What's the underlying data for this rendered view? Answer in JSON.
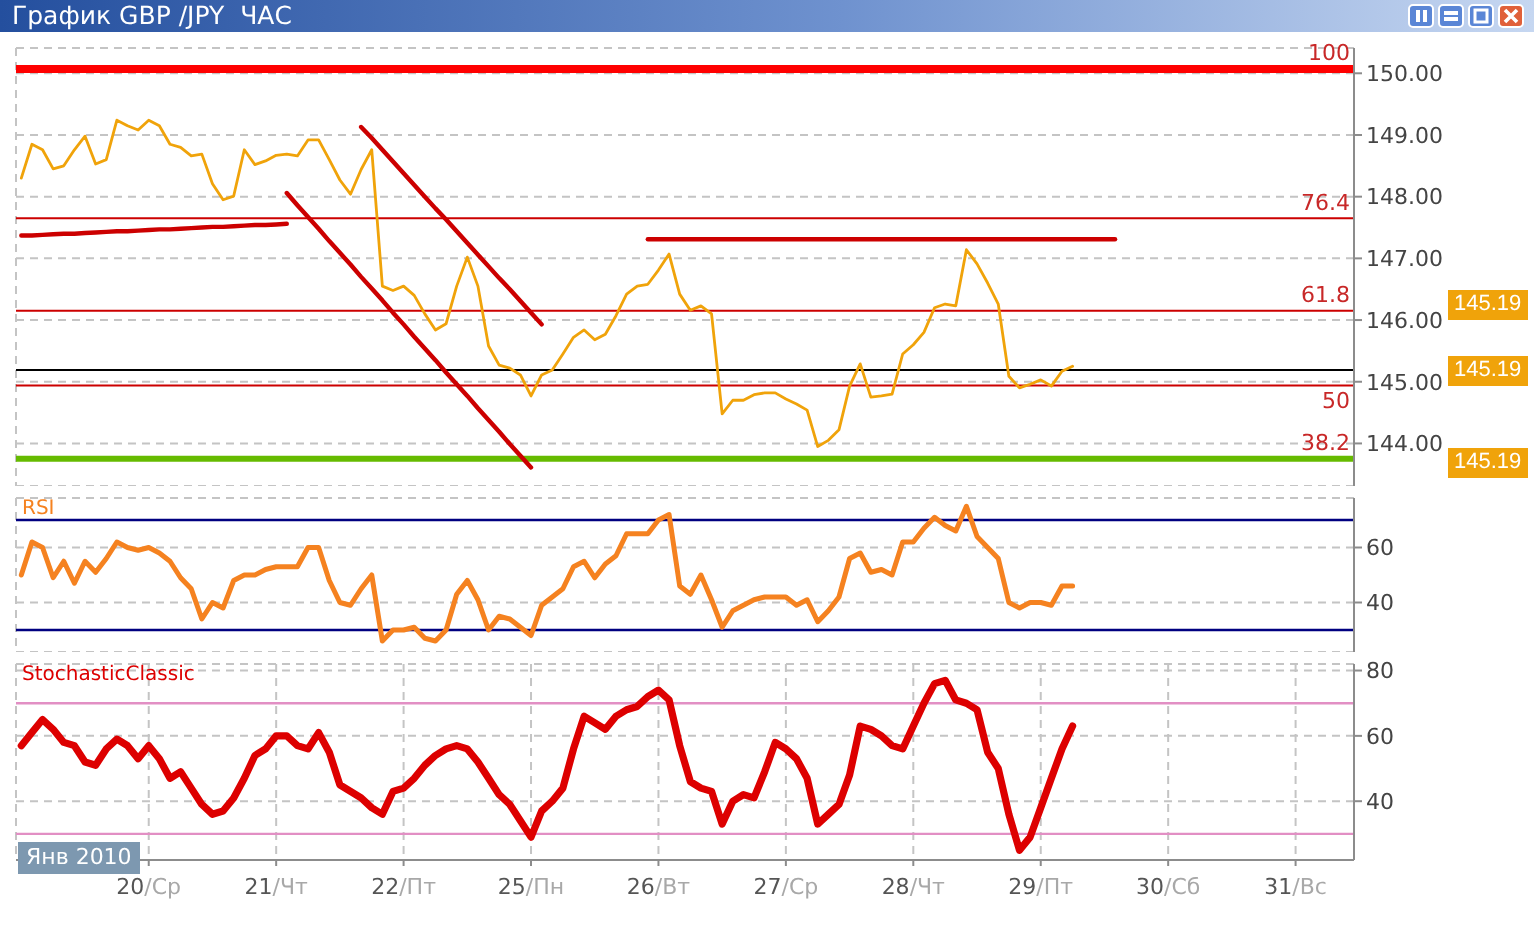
{
  "chart_data": [
    {
      "type": "line",
      "title": "График GBP /JPY  ЧАС",
      "categories": [
        null,
        null,
        null,
        null,
        null,
        null,
        null,
        null,
        null,
        null,
        null,
        null,
        null,
        null,
        null,
        null,
        null,
        null,
        null,
        null,
        null,
        null,
        null,
        null,
        null,
        null,
        null,
        null,
        null,
        null,
        null,
        null,
        null,
        null,
        null,
        null,
        null,
        null,
        null,
        null,
        null,
        null,
        null,
        null,
        null,
        null,
        null,
        null,
        null,
        null,
        null,
        null,
        null,
        null,
        null,
        null,
        null,
        null,
        null,
        null,
        null,
        null,
        null,
        null,
        null,
        null,
        null,
        null,
        null,
        null,
        null,
        null,
        null,
        null,
        null,
        null,
        null,
        null,
        null,
        null,
        null,
        null,
        null,
        null,
        null,
        null,
        null,
        null,
        null,
        null,
        null,
        null,
        null,
        null,
        null,
        null,
        null,
        null,
        null,
        null,
        null,
        null,
        null,
        null,
        null,
        null,
        null,
        null,
        null,
        null,
        null,
        null,
        null,
        null,
        null,
        null,
        null,
        null,
        null,
        null,
        null,
        null,
        null,
        null,
        null,
        null
      ],
      "ylim": [
        143.31,
        150.41
      ],
      "yticks": [
        {
          "value": 144,
          "label": "144.00"
        },
        {
          "value": 145,
          "label": "145.00"
        },
        {
          "value": 146,
          "label": "146.00"
        },
        {
          "value": 147,
          "label": "147.00"
        },
        {
          "value": 148,
          "label": "148.00"
        },
        {
          "value": 149,
          "label": "149.00"
        },
        {
          "value": 150,
          "label": "150.00"
        }
      ],
      "tick_labels": "y",
      "grid": true,
      "series": [
        {
          "color": "#f0a30a",
          "values": [
            148.3,
            148.85,
            148.76,
            148.45,
            148.5,
            148.76,
            148.98,
            148.53,
            148.6,
            149.24,
            149.15,
            149.08,
            149.24,
            149.15,
            148.85,
            148.8,
            148.66,
            148.69,
            148.21,
            147.95,
            148.01,
            148.76,
            148.52,
            148.58,
            148.67,
            148.69,
            148.66,
            148.92,
            148.92,
            148.6,
            148.27,
            148.04,
            148.44,
            148.76,
            146.55,
            146.48,
            146.55,
            146.4,
            146.1,
            145.84,
            145.94,
            146.55,
            147.02,
            146.55,
            145.58,
            145.27,
            145.22,
            145.11,
            144.77,
            145.11,
            145.19,
            145.45,
            145.72,
            145.84,
            145.68,
            145.77,
            146.07,
            146.42,
            146.55,
            146.58,
            146.81,
            147.07,
            146.42,
            146.16,
            146.23,
            146.1,
            144.48,
            144.7,
            144.7,
            144.79,
            144.82,
            144.82,
            144.72,
            144.64,
            144.54,
            143.95,
            144.05,
            144.22,
            144.93,
            145.29,
            144.75,
            144.77,
            144.8,
            145.45,
            145.6,
            145.8,
            146.2,
            146.26,
            146.23,
            147.14,
            146.91,
            146.6,
            146.26,
            145.09,
            144.9,
            144.96,
            145.03,
            144.93,
            145.17,
            145.25,
            null,
            null,
            null,
            null,
            null,
            null,
            null,
            null,
            null,
            null,
            null,
            null,
            null,
            null,
            null,
            null,
            null,
            null,
            null,
            null,
            null,
            null,
            null,
            null,
            null,
            null
          ]
        },
        {
          "color": "#cc0000",
          "values": [
            147.37,
            147.37,
            147.38,
            147.39,
            147.4,
            147.4,
            147.41,
            147.42,
            147.43,
            147.44,
            147.44,
            147.45,
            147.46,
            147.47,
            147.47,
            147.48,
            147.49,
            147.5,
            147.51,
            147.51,
            147.52,
            147.53,
            147.54,
            147.54,
            147.55,
            147.56,
            null,
            null,
            null,
            null,
            null,
            null,
            null,
            null,
            null,
            null,
            null,
            null,
            null,
            null,
            null,
            null,
            null,
            null,
            null,
            null,
            null,
            null,
            null,
            null,
            null,
            null,
            null,
            null,
            null,
            null,
            null,
            null,
            null,
            null,
            null,
            null,
            null,
            null,
            null,
            null,
            null,
            null,
            null,
            null,
            null,
            null,
            null,
            null,
            null,
            null,
            null,
            null,
            null,
            null,
            null,
            null,
            null,
            null,
            null,
            null,
            null,
            null,
            null,
            null,
            null,
            null,
            null,
            null,
            null,
            null,
            null,
            null,
            null,
            null,
            null,
            null,
            null,
            null,
            null,
            null,
            null,
            null,
            null,
            null,
            null,
            null,
            null,
            null,
            null,
            null,
            null,
            null,
            null,
            null,
            null,
            null,
            null,
            null,
            null,
            null
          ]
        },
        {
          "color": "#cc0000",
          "values": [
            null,
            null,
            null,
            null,
            null,
            null,
            null,
            null,
            null,
            null,
            null,
            null,
            null,
            null,
            null,
            null,
            null,
            null,
            null,
            null,
            null,
            null,
            null,
            null,
            null,
            null,
            null,
            null,
            null,
            null,
            null,
            null,
            149.13,
            148.95,
            148.76,
            148.57,
            148.38,
            148.19,
            148.0,
            147.81,
            147.63,
            147.44,
            147.25,
            147.06,
            146.87,
            146.68,
            146.5,
            146.31,
            146.12,
            145.93,
            null,
            null,
            null,
            null,
            null,
            null,
            null,
            null,
            null,
            null,
            null,
            null,
            null,
            null,
            null,
            null,
            null,
            null,
            null,
            null,
            null,
            null,
            null,
            null,
            null,
            null,
            null,
            null,
            null,
            null,
            null,
            null,
            null,
            null,
            null,
            null,
            null,
            null,
            null,
            null,
            null,
            null,
            null,
            null,
            null,
            null,
            null,
            null,
            null,
            null,
            null,
            null,
            null,
            null,
            null,
            null,
            null,
            null,
            null,
            null,
            null,
            null,
            null,
            null,
            null,
            null,
            null,
            null,
            null,
            null,
            null,
            null,
            null,
            null,
            null,
            null
          ]
        },
        {
          "color": "#cc0000",
          "values": [
            null,
            null,
            null,
            null,
            null,
            null,
            null,
            null,
            null,
            null,
            null,
            null,
            null,
            null,
            null,
            null,
            null,
            null,
            null,
            null,
            null,
            null,
            null,
            null,
            null,
            148.06,
            147.86,
            147.67,
            147.48,
            147.28,
            147.09,
            146.9,
            146.7,
            146.51,
            146.32,
            146.12,
            145.93,
            145.73,
            145.54,
            145.35,
            145.15,
            144.96,
            144.77,
            144.57,
            144.38,
            144.19,
            143.99,
            143.8,
            143.61,
            null,
            null,
            null,
            null,
            null,
            null,
            null,
            null,
            null,
            null,
            null,
            null,
            null,
            null,
            null,
            null,
            null,
            null,
            null,
            null,
            null,
            null,
            null,
            null,
            null,
            null,
            null,
            null,
            null,
            null,
            null,
            null,
            null,
            null,
            null,
            null,
            null,
            null,
            null,
            null,
            null,
            null,
            null,
            null,
            null,
            null,
            null,
            null,
            null,
            null,
            null,
            null,
            null,
            null,
            null,
            null,
            null,
            null,
            null,
            null,
            null,
            null,
            null,
            null,
            null,
            null,
            null,
            null,
            null,
            null,
            null,
            null,
            null,
            null,
            null,
            null,
            null
          ]
        },
        {
          "color": "#cc0000",
          "values": [
            null,
            null,
            null,
            null,
            null,
            null,
            null,
            null,
            null,
            null,
            null,
            null,
            null,
            null,
            null,
            null,
            null,
            null,
            null,
            null,
            null,
            null,
            null,
            null,
            null,
            null,
            null,
            null,
            null,
            null,
            null,
            null,
            null,
            null,
            null,
            null,
            null,
            null,
            null,
            null,
            null,
            null,
            null,
            null,
            null,
            null,
            null,
            null,
            null,
            null,
            null,
            null,
            null,
            null,
            null,
            null,
            null,
            null,
            null,
            147.31,
            147.31,
            147.31,
            147.31,
            147.31,
            147.31,
            147.31,
            147.31,
            147.31,
            147.31,
            147.31,
            147.31,
            147.31,
            147.31,
            147.31,
            147.31,
            147.31,
            147.31,
            147.31,
            147.31,
            147.31,
            147.31,
            147.31,
            147.31,
            147.31,
            147.31,
            147.31,
            147.31,
            147.31,
            147.31,
            147.31,
            147.31,
            147.31,
            147.31,
            147.31,
            147.31,
            147.31,
            147.31,
            147.31,
            147.31,
            147.31,
            147.31,
            147.31,
            147.31,
            147.31,
            null,
            null,
            null,
            null,
            null,
            null,
            null,
            null,
            null,
            null,
            null,
            null,
            null,
            null,
            null,
            null,
            null,
            null,
            null,
            null,
            null,
            null
          ]
        }
      ],
      "ref_lines": [
        {
          "axis": "y",
          "value": 150.07,
          "color": "#ff0000"
        },
        {
          "axis": "y",
          "value": 147.65,
          "color": "#cc0000"
        },
        {
          "axis": "y",
          "value": 146.15,
          "color": "#cc0000"
        },
        {
          "axis": "y",
          "value": 145.19,
          "color": "#000000"
        },
        {
          "axis": "y",
          "value": 144.94,
          "color": "#cc0000"
        },
        {
          "axis": "y",
          "value": 143.75,
          "color": "#66bb00"
        }
      ],
      "annotations": [
        {
          "text": "100",
          "y": 150.07
        },
        {
          "text": "76.4",
          "y": 147.65
        },
        {
          "text": "61.8",
          "y": 146.15
        },
        {
          "text": "50",
          "y": 144.94
        },
        {
          "text": "38.2",
          "y": 143.75
        },
        "145.19",
        "145.19",
        "145.19"
      ]
    },
    {
      "type": "line",
      "title": "RSI",
      "categories": [
        null,
        null,
        null,
        null,
        null,
        null,
        null,
        null,
        null,
        null,
        null,
        null,
        null,
        null,
        null,
        null,
        null,
        null,
        null,
        null,
        null,
        null,
        null,
        null,
        null,
        null,
        null,
        null,
        null,
        null,
        null,
        null,
        null,
        null,
        null,
        null,
        null,
        null,
        null,
        null,
        null,
        null,
        null,
        null,
        null,
        null,
        null,
        null,
        null,
        null,
        null,
        null,
        null,
        null,
        null,
        null,
        null,
        null,
        null,
        null,
        null,
        null,
        null,
        null,
        null,
        null,
        null,
        null,
        null,
        null,
        null,
        null,
        null,
        null,
        null,
        null,
        null,
        null,
        null,
        null,
        null,
        null,
        null,
        null,
        null,
        null,
        null,
        null,
        null,
        null,
        null,
        null,
        null,
        null,
        null,
        null,
        null,
        null,
        null,
        null,
        null,
        null,
        null,
        null,
        null,
        null,
        null,
        null,
        null,
        null,
        null,
        null,
        null,
        null,
        null,
        null,
        null,
        null,
        null,
        null,
        null,
        null,
        null,
        null,
        null,
        null
      ],
      "ylim": [
        22,
        78
      ],
      "yticks": [
        40,
        60
      ],
      "tick_labels": "y",
      "grid": true,
      "series": [
        {
          "color": "#f58220",
          "values": [
            50,
            62,
            60,
            49,
            55,
            47,
            55,
            51,
            56,
            62,
            60,
            59,
            60,
            58,
            55,
            49,
            45,
            34,
            40,
            38,
            48,
            50,
            50,
            52,
            53,
            53,
            53,
            60,
            60,
            48,
            40,
            39,
            45,
            50,
            26,
            30,
            30,
            31,
            27,
            26,
            30,
            43,
            48,
            41,
            30,
            35,
            34,
            31,
            28,
            39,
            42,
            45,
            53,
            55,
            49,
            54,
            57,
            65,
            65,
            65,
            70,
            72,
            46,
            43,
            50,
            41,
            31,
            37,
            39,
            41,
            42,
            42,
            42,
            39,
            41,
            33,
            37,
            42,
            56,
            58,
            51,
            52,
            50,
            62,
            62,
            67,
            71,
            68,
            66,
            75,
            64,
            60,
            56,
            40,
            38,
            40,
            40,
            39,
            46,
            46,
            null,
            null,
            null,
            null,
            null,
            null,
            null,
            null,
            null,
            null,
            null,
            null,
            null,
            null,
            null,
            null,
            null,
            null,
            null,
            null,
            null,
            null,
            null,
            null,
            null,
            null
          ]
        }
      ],
      "ref_lines": [
        {
          "axis": "y",
          "value": 70,
          "color": "#000080"
        },
        {
          "axis": "y",
          "value": 30,
          "color": "#000080"
        }
      ]
    },
    {
      "type": "line",
      "title": "StochasticClassic",
      "categories": [
        null,
        null,
        null,
        null,
        null,
        null,
        null,
        null,
        null,
        null,
        null,
        null,
        "20/Ср",
        null,
        null,
        null,
        null,
        null,
        null,
        null,
        null,
        null,
        null,
        null,
        "21/Чт",
        null,
        null,
        null,
        null,
        null,
        null,
        null,
        null,
        null,
        null,
        null,
        "22/Пт",
        null,
        null,
        null,
        null,
        null,
        null,
        null,
        null,
        null,
        null,
        null,
        "25/Пн",
        null,
        null,
        null,
        null,
        null,
        null,
        null,
        null,
        null,
        null,
        null,
        "26/Вт",
        null,
        null,
        null,
        null,
        null,
        null,
        null,
        null,
        null,
        null,
        null,
        "27/Ср",
        null,
        null,
        null,
        null,
        null,
        null,
        null,
        null,
        null,
        null,
        null,
        "28/Чт",
        null,
        null,
        null,
        null,
        null,
        null,
        null,
        null,
        null,
        null,
        null,
        "29/Пт",
        null,
        null,
        null,
        null,
        null,
        null,
        null,
        null,
        null,
        null,
        null,
        "30/Сб",
        null,
        null,
        null,
        null,
        null,
        null,
        null,
        null,
        null,
        null,
        null,
        "31/Вс",
        null,
        null,
        null,
        null,
        null
      ],
      "ylim": [
        22,
        82
      ],
      "yticks": [
        40,
        60,
        80
      ],
      "grid": true,
      "series": [
        {
          "color": "#dd0000",
          "values": [
            57,
            61,
            65,
            62,
            58,
            57,
            52,
            51,
            56,
            59,
            57,
            53,
            57,
            53,
            47,
            49,
            44,
            39,
            36,
            37,
            41,
            47,
            54,
            56,
            60,
            60,
            57,
            56,
            61,
            55,
            45,
            43,
            41,
            38,
            36,
            43,
            44,
            47,
            51,
            54,
            56,
            57,
            56,
            52,
            47,
            42,
            39,
            34,
            29,
            37,
            40,
            44,
            56,
            66,
            64,
            62,
            66,
            68,
            69,
            72,
            74,
            71,
            57,
            46,
            44,
            43,
            33,
            40,
            42,
            41,
            49,
            58,
            56,
            53,
            47,
            33,
            36,
            39,
            48,
            63,
            62,
            60,
            57,
            56,
            63,
            70,
            76,
            77,
            71,
            70,
            68,
            55,
            50,
            36,
            25,
            29,
            38,
            47,
            56,
            63,
            null,
            null,
            null,
            null,
            null,
            null,
            null,
            null,
            null,
            null,
            null,
            null,
            null,
            null,
            null,
            null,
            null,
            null,
            null,
            null,
            null,
            null,
            null,
            null,
            null,
            null
          ]
        }
      ],
      "ref_lines": [
        {
          "axis": "y",
          "value": 70,
          "color": "#e28fc4"
        },
        {
          "axis": "y",
          "value": 30,
          "color": "#e28fc4"
        }
      ],
      "annotations": [
        "Янв 2010"
      ]
    }
  ]
}
